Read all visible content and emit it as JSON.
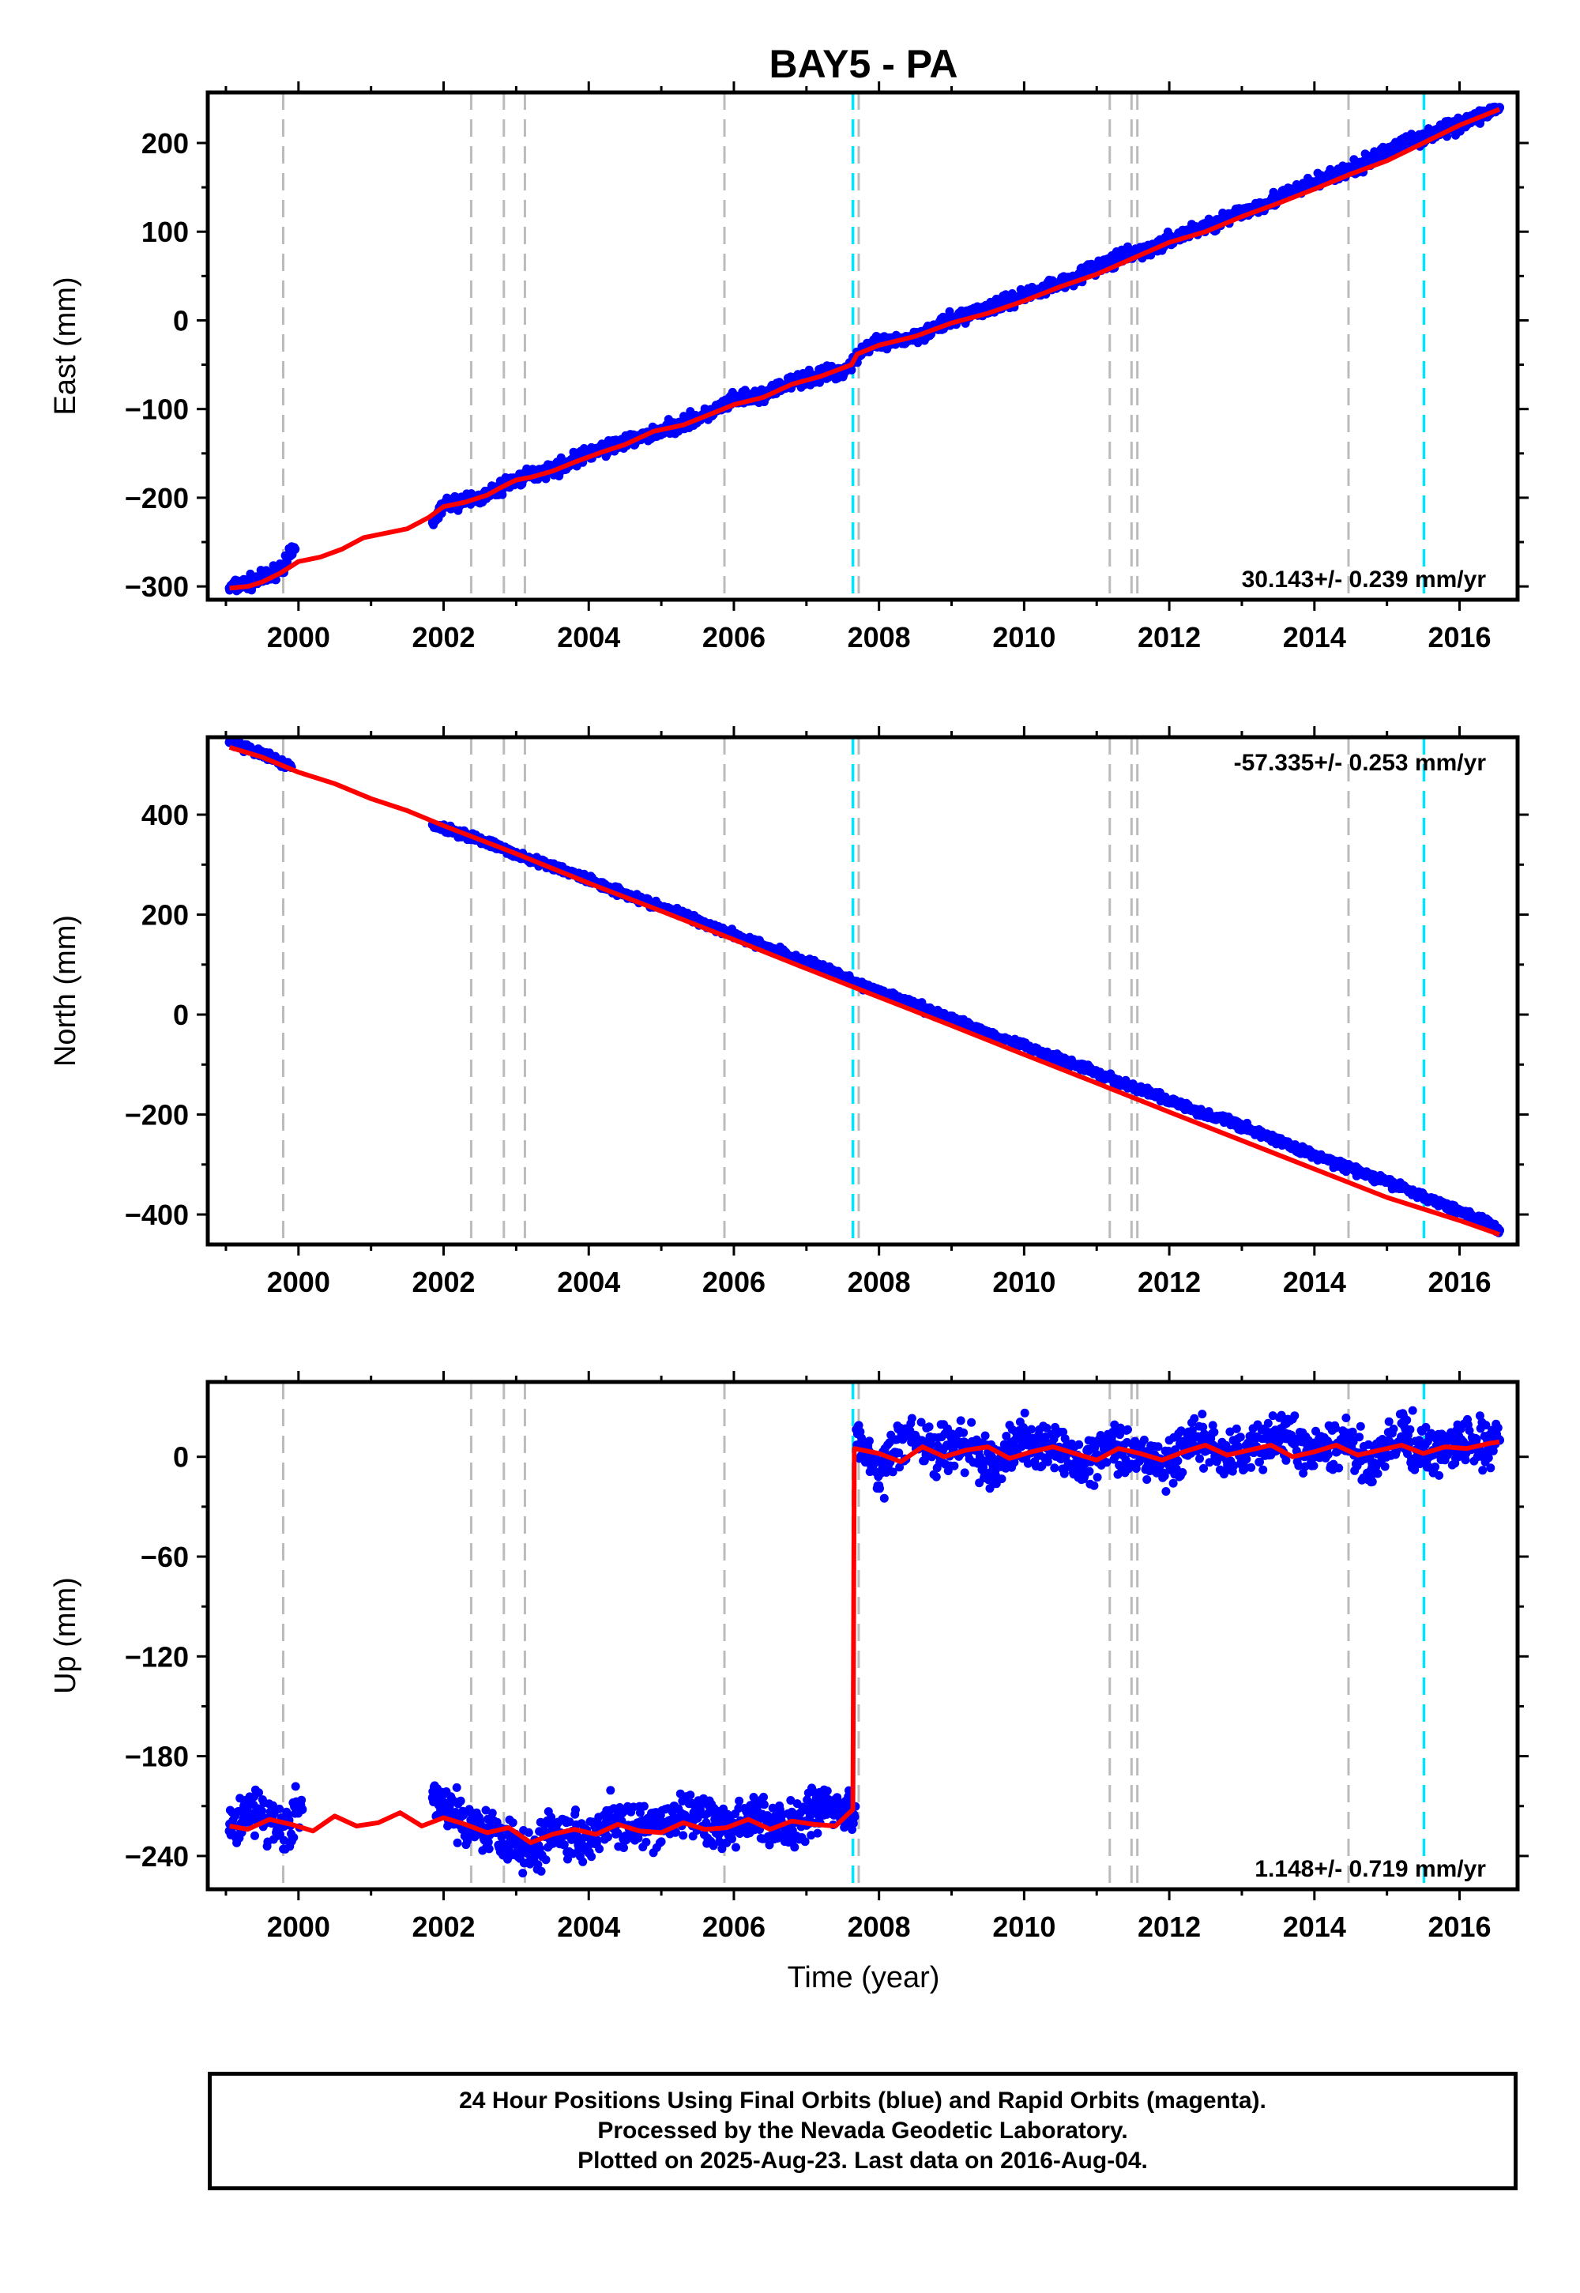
{
  "page": {
    "title": "BAY5 - PA",
    "x_label": "Time (year)"
  },
  "colors": {
    "final_orbits": "#0000ff",
    "model": "#ff0000",
    "gray_event": "#bbbbbb",
    "cyan_event": "#00e5ff"
  },
  "events": {
    "gray": [
      1999.79,
      2002.38,
      2002.83,
      2003.12,
      2005.87,
      2007.72,
      2011.18,
      2011.48,
      2011.56,
      2014.47
    ],
    "cyan": [
      2007.64,
      2015.51
    ]
  },
  "chart_data": [
    {
      "type": "scatter",
      "name": "east",
      "ylabel": "East (mm)",
      "xlim": [
        1998.75,
        2016.8
      ],
      "ylim": [
        -315,
        257
      ],
      "xticks": [
        2000,
        2002,
        2004,
        2006,
        2008,
        2010,
        2012,
        2014,
        2016
      ],
      "yticks": [
        -300,
        -200,
        -100,
        0,
        100,
        200
      ],
      "ytick_labels": [
        "−300",
        "−200",
        "−100",
        "0",
        "100",
        "200"
      ],
      "rate_text": "30.143+/- 0.239 mm/yr",
      "rate_position": "bottom-right",
      "series": [
        {
          "legend": "final orbits (blue)",
          "color": "#0000ff",
          "x": [
            1999.05,
            1999.2,
            1999.4,
            1999.6,
            1999.8,
            1999.95,
            2001.85,
            2002.0,
            2002.3,
            2002.6,
            2002.9,
            2003.2,
            2003.6,
            2004.0,
            2004.4,
            2004.8,
            2005.2,
            2005.6,
            2006.0,
            2006.4,
            2006.8,
            2007.2,
            2007.55,
            2007.8,
            2008.2,
            2008.6,
            2009.0,
            2009.4,
            2009.8,
            2010.2,
            2010.6,
            2011.0,
            2011.4,
            2011.8,
            2012.2,
            2012.6,
            2013.0,
            2013.4,
            2013.8,
            2014.2,
            2014.6,
            2015.0,
            2015.4,
            2015.8,
            2016.2,
            2016.55
          ],
          "y": [
            -302,
            -298,
            -294,
            -288,
            -275,
            -258,
            -228,
            -208,
            -203,
            -198,
            -183,
            -175,
            -165,
            -150,
            -140,
            -130,
            -118,
            -108,
            -90,
            -85,
            -70,
            -62,
            -55,
            -30,
            -25,
            -15,
            0,
            12,
            22,
            35,
            45,
            60,
            72,
            82,
            98,
            108,
            122,
            135,
            148,
            162,
            172,
            192,
            205,
            215,
            228,
            240
          ]
        },
        {
          "legend": "model (red)",
          "color": "#ff0000",
          "x": [
            1999.05,
            1999.3,
            1999.5,
            1999.75,
            2000.0,
            2000.3,
            2000.6,
            2000.9,
            2001.2,
            2001.5,
            2001.8,
            2002.0,
            2002.3,
            2002.6,
            2002.8,
            2003.0,
            2003.2,
            2003.5,
            2003.8,
            2004.2,
            2004.5,
            2004.9,
            2005.3,
            2005.7,
            2006.0,
            2006.4,
            2006.8,
            2007.2,
            2007.62,
            2007.7,
            2008.0,
            2008.5,
            2009.0,
            2009.5,
            2010.0,
            2010.5,
            2011.0,
            2011.5,
            2012.0,
            2012.5,
            2013.0,
            2013.5,
            2014.0,
            2014.5,
            2015.0,
            2015.5,
            2016.0,
            2016.55
          ],
          "y": [
            -302,
            -300,
            -295,
            -285,
            -272,
            -267,
            -258,
            -245,
            -240,
            -235,
            -222,
            -210,
            -205,
            -197,
            -188,
            -180,
            -177,
            -170,
            -160,
            -148,
            -140,
            -125,
            -118,
            -105,
            -95,
            -87,
            -72,
            -63,
            -50,
            -38,
            -28,
            -18,
            -3,
            8,
            22,
            38,
            52,
            70,
            88,
            100,
            117,
            132,
            148,
            165,
            180,
            200,
            220,
            238
          ]
        }
      ]
    },
    {
      "type": "scatter",
      "name": "north",
      "ylabel": "North (mm)",
      "xlim": [
        1998.75,
        2016.8
      ],
      "ylim": [
        -460,
        555
      ],
      "xticks": [
        2000,
        2002,
        2004,
        2006,
        2008,
        2010,
        2012,
        2014,
        2016
      ],
      "yticks": [
        -400,
        -200,
        0,
        200,
        400
      ],
      "ytick_labels": [
        "−400",
        "−200",
        "0",
        "200",
        "400"
      ],
      "rate_text": "-57.335+/- 0.253 mm/yr",
      "rate_position": "top-right",
      "series": [
        {
          "legend": "final orbits (blue)",
          "color": "#0000ff",
          "x": [
            1999.05,
            1999.3,
            1999.6,
            1999.9,
            2001.85,
            2002.2,
            2002.6,
            2003.0,
            2003.4,
            2003.8,
            2004.2,
            2004.6,
            2005.0,
            2005.4,
            2005.8,
            2006.2,
            2006.6,
            2007.0,
            2007.4,
            2007.7,
            2008.0,
            2008.4,
            2008.8,
            2009.2,
            2009.6,
            2010.0,
            2010.4,
            2010.8,
            2011.2,
            2011.6,
            2012.0,
            2012.4,
            2012.8,
            2013.2,
            2013.6,
            2014.0,
            2014.4,
            2014.8,
            2015.2,
            2015.6,
            2016.0,
            2016.4,
            2016.55
          ],
          "y": [
            545,
            530,
            515,
            495,
            380,
            365,
            345,
            320,
            300,
            282,
            258,
            237,
            215,
            195,
            172,
            148,
            128,
            105,
            85,
            62,
            45,
            25,
            2,
            -20,
            -42,
            -62,
            -85,
            -105,
            -128,
            -150,
            -172,
            -195,
            -212,
            -235,
            -258,
            -282,
            -302,
            -325,
            -345,
            -370,
            -392,
            -418,
            -432
          ]
        },
        {
          "legend": "model (red)",
          "color": "#ff0000",
          "x": [
            1999.05,
            1999.5,
            2000.0,
            2000.5,
            2001.0,
            2001.5,
            2002.0,
            2003.0,
            2004.0,
            2005.0,
            2006.0,
            2007.0,
            2008.0,
            2009.0,
            2010.0,
            2011.0,
            2012.0,
            2013.0,
            2014.0,
            2015.0,
            2016.0,
            2016.55
          ],
          "y": [
            535,
            515,
            485,
            462,
            432,
            408,
            378,
            322,
            263,
            207,
            150,
            92,
            35,
            -22,
            -80,
            -137,
            -195,
            -252,
            -309,
            -366,
            -412,
            -440
          ]
        }
      ]
    },
    {
      "type": "scatter",
      "name": "up",
      "ylabel": "Up (mm)",
      "xlim": [
        1998.75,
        2016.8
      ],
      "ylim": [
        -260,
        45
      ],
      "xticks": [
        2000,
        2002,
        2004,
        2006,
        2008,
        2010,
        2012,
        2014,
        2016
      ],
      "yticks": [
        -240,
        -180,
        -120,
        -60,
        0
      ],
      "ytick_labels": [
        "−240",
        "−180",
        "−120",
        "−60",
        "0"
      ],
      "rate_text": "1.148+/- 0.719 mm/yr",
      "rate_position": "bottom-right",
      "series": [
        {
          "legend": "final orbits (blue)",
          "color": "#0000ff",
          "x": [
            1999.05,
            1999.3,
            1999.55,
            1999.8,
            2000.05,
            2001.85,
            2002.1,
            2002.4,
            2002.7,
            2003.0,
            2003.2,
            2003.5,
            2003.9,
            2004.3,
            2004.7,
            2005.1,
            2005.5,
            2005.9,
            2006.3,
            2006.7,
            2007.1,
            2007.45,
            2007.62,
            2007.75,
            2008.0,
            2008.4,
            2008.8,
            2009.2,
            2009.6,
            2010.0,
            2010.4,
            2010.8,
            2011.2,
            2011.6,
            2012.0,
            2012.4,
            2012.8,
            2013.2,
            2013.6,
            2014.0,
            2014.4,
            2014.8,
            2015.2,
            2015.6,
            2016.0,
            2016.4,
            2016.55
          ],
          "y": [
            -225,
            -210,
            -218,
            -222,
            -212,
            -205,
            -215,
            -220,
            -225,
            -232,
            -240,
            -222,
            -230,
            -218,
            -226,
            -220,
            -214,
            -225,
            -216,
            -222,
            -212,
            -208,
            -214,
            8,
            -10,
            14,
            2,
            8,
            -8,
            12,
            4,
            -6,
            10,
            0,
            -5,
            12,
            -2,
            6,
            14,
            0,
            10,
            -4,
            12,
            2,
            8,
            6,
            10
          ]
        },
        {
          "legend": "model (red)",
          "color": "#ff0000",
          "x": [
            1999.05,
            1999.3,
            1999.6,
            1999.9,
            2000.2,
            2000.5,
            2000.8,
            2001.1,
            2001.4,
            2001.7,
            2002.0,
            2002.3,
            2002.6,
            2002.9,
            2003.2,
            2003.5,
            2003.8,
            2004.1,
            2004.4,
            2004.7,
            2005.0,
            2005.3,
            2005.6,
            2005.9,
            2006.2,
            2006.5,
            2006.8,
            2007.1,
            2007.4,
            2007.64,
            2007.66,
            2008.0,
            2008.3,
            2008.6,
            2008.9,
            2009.2,
            2009.5,
            2009.8,
            2010.1,
            2010.4,
            2010.7,
            2011.0,
            2011.3,
            2011.6,
            2011.9,
            2012.2,
            2012.5,
            2012.8,
            2013.1,
            2013.4,
            2013.7,
            2014.0,
            2014.3,
            2014.6,
            2014.9,
            2015.2,
            2015.5,
            2015.8,
            2016.1,
            2016.4,
            2016.55
          ],
          "y": [
            -222,
            -224,
            -218,
            -221,
            -225,
            -216,
            -222,
            -220,
            -214,
            -222,
            -217,
            -221,
            -226,
            -223,
            -232,
            -227,
            -224,
            -227,
            -221,
            -225,
            -226,
            -220,
            -224,
            -223,
            -218,
            -224,
            -219,
            -221,
            -222,
            -212,
            5,
            2,
            -3,
            6,
            0,
            4,
            6,
            -1,
            3,
            6,
            2,
            -2,
            5,
            2,
            -2,
            3,
            7,
            1,
            4,
            7,
            0,
            3,
            7,
            1,
            4,
            7,
            2,
            6,
            5,
            8,
            9
          ]
        }
      ]
    }
  ],
  "footer": {
    "line1": "24 Hour Positions Using Final Orbits (blue) and Rapid Orbits (magenta).",
    "line2": "Processed by the Nevada Geodetic Laboratory.",
    "line3": "Plotted on 2025-Aug-23. Last data on 2016-Aug-04."
  }
}
